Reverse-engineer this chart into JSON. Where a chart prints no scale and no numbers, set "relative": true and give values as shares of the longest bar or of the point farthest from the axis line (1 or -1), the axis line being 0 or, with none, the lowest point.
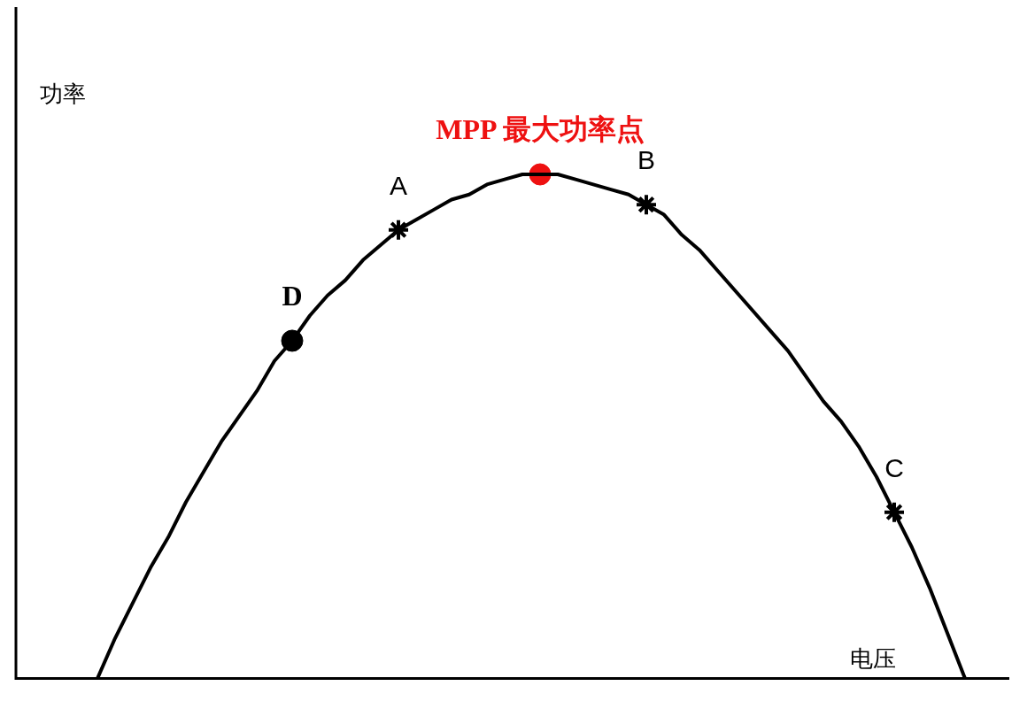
{
  "chart_data": {
    "type": "line",
    "xlabel": "电压",
    "ylabel": "功率",
    "relative": true,
    "legend": false,
    "categories": [
      null,
      null,
      null,
      null,
      null,
      null,
      null,
      null,
      null,
      null,
      null,
      null,
      null,
      null,
      null,
      null,
      null,
      null,
      null,
      null,
      null,
      null,
      null,
      null,
      null,
      null,
      null,
      null,
      null,
      null,
      null,
      null,
      null,
      null,
      null,
      null,
      null,
      null,
      null,
      null,
      null,
      null,
      null,
      null,
      null,
      null,
      null,
      null,
      null,
      null
    ],
    "series": [
      {
        "color": "#000000",
        "marker": "none",
        "line_style": "solid",
        "values": [
          0,
          0.08,
          0.15,
          0.22,
          0.28,
          0.35,
          0.41,
          0.47,
          0.52,
          0.57,
          0.63,
          0.67,
          0.72,
          0.76,
          0.79,
          0.83,
          0.86,
          0.89,
          0.91,
          0.93,
          0.95,
          0.96,
          0.98,
          0.99,
          1,
          1,
          1,
          0.99,
          0.98,
          0.97,
          0.96,
          0.94,
          0.92,
          0.88,
          0.85,
          0.81,
          0.77,
          0.73,
          0.69,
          0.65,
          0.6,
          0.55,
          0.51,
          0.46,
          0.4,
          0.33,
          0.26,
          0.18,
          0.09,
          0
        ]
      },
      {
        "name": "D",
        "color": "#000000",
        "marker": "circle",
        "values": [
          null,
          null,
          null,
          null,
          null,
          null,
          null,
          null,
          null,
          null,
          null,
          0.67,
          null,
          null,
          null,
          null,
          null,
          null,
          null,
          null,
          null,
          null,
          null,
          null,
          null,
          null,
          null,
          null,
          null,
          null,
          null,
          null,
          null,
          null,
          null,
          null,
          null,
          null,
          null,
          null,
          null,
          null,
          null,
          null,
          null,
          null,
          null,
          null,
          null,
          null
        ]
      },
      {
        "name": "A",
        "color": "#000000",
        "marker": "cross",
        "values": [
          null,
          null,
          null,
          null,
          null,
          null,
          null,
          null,
          null,
          null,
          null,
          null,
          null,
          null,
          null,
          null,
          null,
          0.89,
          null,
          null,
          null,
          null,
          null,
          null,
          null,
          null,
          null,
          null,
          null,
          null,
          null,
          null,
          null,
          null,
          null,
          null,
          null,
          null,
          null,
          null,
          null,
          null,
          null,
          null,
          null,
          null,
          null,
          null,
          null,
          null
        ]
      },
      {
        "name": "MPP 最大功率点",
        "color": "#ee1111",
        "marker": "circle",
        "values": [
          null,
          null,
          null,
          null,
          null,
          null,
          null,
          null,
          null,
          null,
          null,
          null,
          null,
          null,
          null,
          null,
          null,
          null,
          null,
          null,
          null,
          null,
          null,
          null,
          null,
          1,
          null,
          null,
          null,
          null,
          null,
          null,
          null,
          null,
          null,
          null,
          null,
          null,
          null,
          null,
          null,
          null,
          null,
          null,
          null,
          null,
          null,
          null,
          null,
          null
        ]
      },
      {
        "name": "B",
        "color": "#000000",
        "marker": "cross",
        "values": [
          null,
          null,
          null,
          null,
          null,
          null,
          null,
          null,
          null,
          null,
          null,
          null,
          null,
          null,
          null,
          null,
          null,
          null,
          null,
          null,
          null,
          null,
          null,
          null,
          null,
          null,
          null,
          null,
          null,
          null,
          null,
          0.94,
          null,
          null,
          null,
          null,
          null,
          null,
          null,
          null,
          null,
          null,
          null,
          null,
          null,
          null,
          null,
          null,
          null,
          null
        ]
      },
      {
        "name": "C",
        "color": "#000000",
        "marker": "cross",
        "values": [
          null,
          null,
          null,
          null,
          null,
          null,
          null,
          null,
          null,
          null,
          null,
          null,
          null,
          null,
          null,
          null,
          null,
          null,
          null,
          null,
          null,
          null,
          null,
          null,
          null,
          null,
          null,
          null,
          null,
          null,
          null,
          null,
          null,
          null,
          null,
          null,
          null,
          null,
          null,
          null,
          null,
          null,
          null,
          null,
          null,
          0.33,
          null,
          null,
          null,
          null
        ]
      }
    ]
  }
}
